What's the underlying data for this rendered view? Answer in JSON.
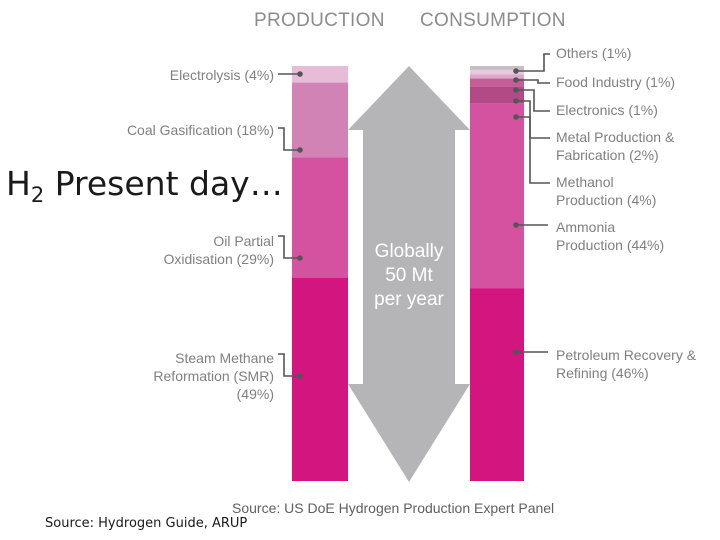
{
  "headers": {
    "production": "PRODUCTION",
    "consumption": "CONSUMPTION"
  },
  "title": {
    "main": "H",
    "sub": "2",
    "rest": " Present day…"
  },
  "center": {
    "line1": "Globally",
    "line2": "50 Mt",
    "line3": "per year"
  },
  "production": [
    {
      "label_lines": [
        "Electrolysis (4%)"
      ],
      "percent": 4,
      "color": "#e6bcd7"
    },
    {
      "label_lines": [
        "Coal Gasification (18%)"
      ],
      "percent": 18,
      "color": "#d283b6"
    },
    {
      "label_lines": [
        "Oil Partial",
        "Oxidisation (29%)"
      ],
      "percent": 29,
      "color": "#d353a1"
    },
    {
      "label_lines": [
        "Steam Methane",
        "Reformation (SMR)",
        "(49%)"
      ],
      "percent": 49,
      "color": "#d3157f"
    }
  ],
  "consumption": [
    {
      "label_lines": [
        "Others (1%)"
      ],
      "percent": 1,
      "color": "#c9bec5"
    },
    {
      "label_lines": [
        "Food Industry (1%)"
      ],
      "percent": 1,
      "color": "#e8c8dc"
    },
    {
      "label_lines": [
        "Electronics (1%)"
      ],
      "percent": 1,
      "color": "#e0a6c8"
    },
    {
      "label_lines": [
        "Metal Production &",
        "Fabrication (2%)"
      ],
      "percent": 2,
      "color": "#c55d98"
    },
    {
      "label_lines": [
        "Methanol",
        "Production (4%)"
      ],
      "percent": 4,
      "color": "#b14a86"
    },
    {
      "label_lines": [
        "Ammonia",
        "Production (44%)"
      ],
      "percent": 44,
      "color": "#d353a1"
    },
    {
      "label_lines": [
        "Petroleum Recovery &",
        "Refining (46%)"
      ],
      "percent": 46,
      "color": "#d3157f"
    }
  ],
  "colors": {
    "arrow": "#b5b5b7",
    "connector": "#555555",
    "label_text": "#808080"
  },
  "source_top": "Source: US DoE Hydrogen Production Expert Panel",
  "source_bottom": "Source: Hydrogen Guide, ARUP"
}
